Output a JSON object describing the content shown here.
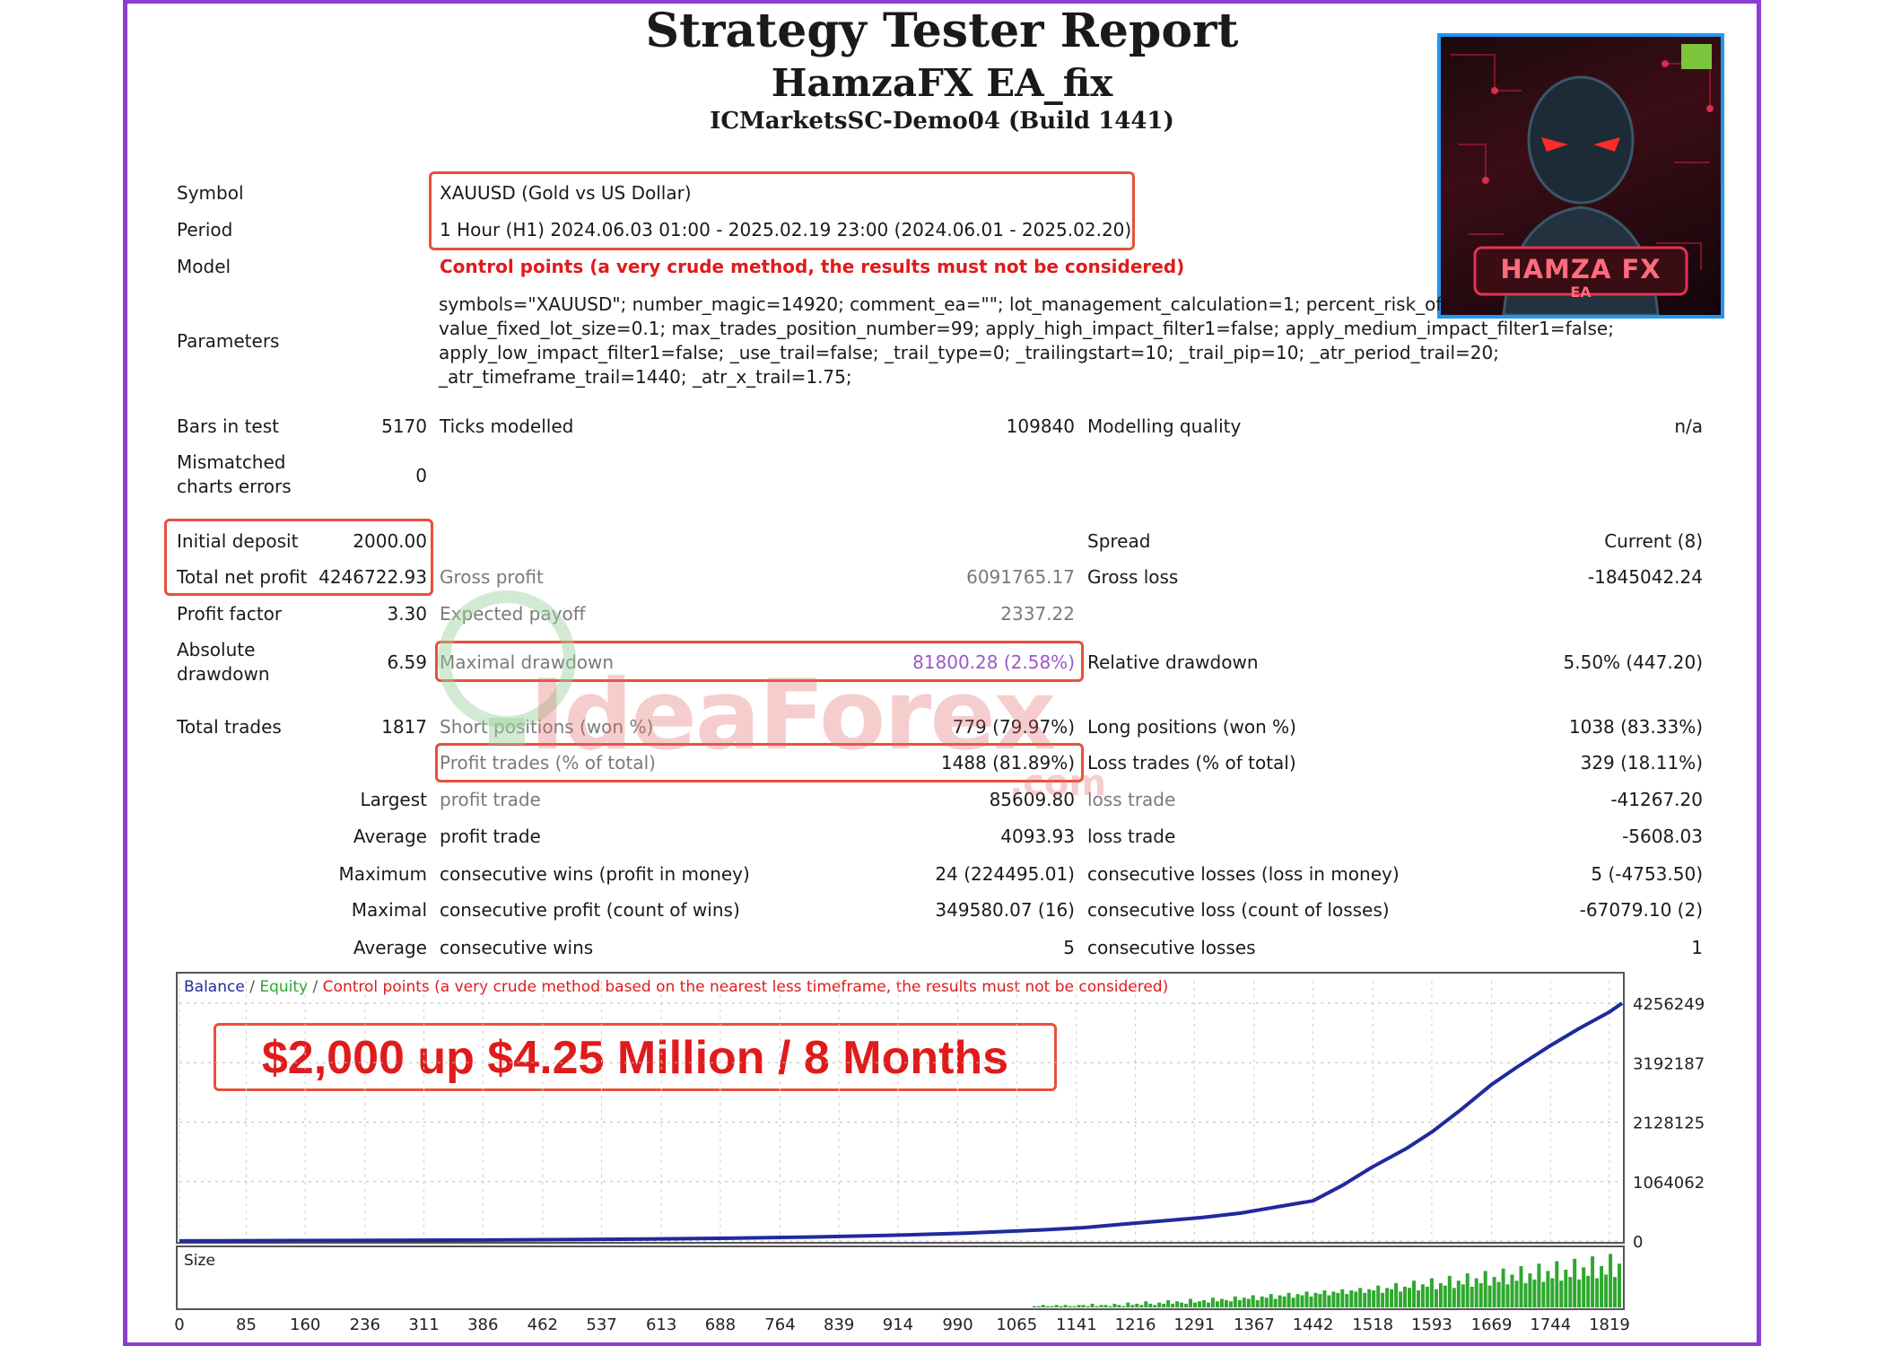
{
  "header": {
    "title": "Strategy Tester Report",
    "ea_name": "HamzaFX EA_fix",
    "server": "ICMarketsSC-Demo04 (Build 1441)"
  },
  "logo": {
    "text_main": "HAMZA FX",
    "text_sub": "EA",
    "icon": "robot-avatar-icon"
  },
  "settings": {
    "symbol_label": "Symbol",
    "symbol_value": "XAUUSD (Gold vs US Dollar)",
    "period_label": "Period",
    "period_value": "1 Hour (H1) 2024.06.03 01:00 - 2025.02.19 23:00 (2024.06.01 - 2025.02.20)",
    "model_label": "Model",
    "model_value": "Control points (a very crude method, the results must not be considered)",
    "parameters_label": "Parameters",
    "parameters_lines": [
      "symbols=\"XAUUSD\"; number_magic=14920; comment_ea=\"\"; lot_management_calculation=1; percent_risk_of_",
      "value_fixed_lot_size=0.1; max_trades_position_number=99; apply_high_impact_filter1=false; apply_medium_impact_filter1=false;",
      "apply_low_impact_filter1=false; _use_trail=false; _trail_type=0; _trailingstart=10; _trail_pip=10; _atr_period_trail=20;",
      "_atr_timeframe_trail=1440; _atr_x_trail=1.75;"
    ]
  },
  "stats": {
    "bars_label": "Bars in test",
    "bars_value": "5170",
    "ticks_label": "Ticks modelled",
    "ticks_value": "109840",
    "quality_label": "Modelling quality",
    "quality_value": "n/a",
    "mismatch_label_1": "Mismatched",
    "mismatch_label_2": "charts errors",
    "mismatch_value": "0",
    "deposit_label": "Initial deposit",
    "deposit_value": "2000.00",
    "spread_label": "Spread",
    "spread_value": "Current (8)",
    "net_label": "Total net profit",
    "net_value": "4246722.93",
    "gross_profit_label": "Gross profit",
    "gross_profit_value": "6091765.17",
    "gross_loss_label": "Gross loss",
    "gross_loss_value": "-1845042.24",
    "pf_label": "Profit factor",
    "pf_value": "3.30",
    "ep_label": "Expected payoff",
    "ep_value": "2337.22",
    "abs_dd_label_1": "Absolute",
    "abs_dd_label_2": "drawdown",
    "abs_dd_value": "6.59",
    "max_dd_label": "Maximal drawdown",
    "max_dd_value": "81800.28 (2.58%)",
    "rel_dd_label": "Relative drawdown",
    "rel_dd_value": "5.50% (447.20)",
    "trades_label": "Total trades",
    "trades_value": "1817",
    "short_label": "Short positions (won %)",
    "short_value": "779 (79.97%)",
    "long_label": "Long positions (won %)",
    "long_value": "1038 (83.33%)",
    "profit_trades_label": "Profit trades (% of total)",
    "profit_trades_value": "1488 (81.89%)",
    "loss_trades_label": "Loss trades (% of total)",
    "loss_trades_value": "329 (18.11%)",
    "largest_label": "Largest",
    "largest_profit_label": "profit trade",
    "largest_profit_value": "85609.80",
    "largest_loss_label": "loss trade",
    "largest_loss_value": "-41267.20",
    "average_label": "Average",
    "avg_profit_label": "profit trade",
    "avg_profit_value": "4093.93",
    "avg_loss_label": "loss trade",
    "avg_loss_value": "-5608.03",
    "maximum_label": "Maximum",
    "max_wins_label": "consecutive wins (profit in money)",
    "max_wins_value": "24 (224495.01)",
    "max_losses_label": "consecutive losses (loss in money)",
    "max_losses_value": "5 (-4753.50)",
    "maximal_label": "Maximal",
    "maximal_profit_label": "consecutive profit (count of wins)",
    "maximal_profit_value": "349580.07 (16)",
    "maximal_loss_label": "consecutive loss (count of losses)",
    "maximal_loss_value": "-67079.10 (2)",
    "average2_label": "Average",
    "avg_wins_label": "consecutive wins",
    "avg_wins_value": "5",
    "avg_losses_label": "consecutive losses",
    "avg_losses_value": "1"
  },
  "watermark": {
    "text": "IdeaForex",
    "sub": ".com"
  },
  "chart_legend": {
    "balance": "Balance",
    "sep1": " / ",
    "equity": "Equity",
    "sep2": " / ",
    "note": "Control points (a very crude method based on the nearest less timeframe, the results must not be considered)"
  },
  "banner": "$2,000 up $4.25 Million / 8 Months",
  "size_label": "Size",
  "colors": {
    "balance": "#1f2a9e",
    "equity": "#2ea82e",
    "highlight": "#e8503b",
    "frame": "#8a3fd1"
  },
  "chart_data": {
    "type": "line",
    "title": "",
    "series": [
      {
        "name": "Balance",
        "x": [
          0,
          100,
          200,
          300,
          400,
          500,
          600,
          700,
          800,
          900,
          1000,
          1050,
          1100,
          1150,
          1200,
          1250,
          1300,
          1350,
          1400,
          1442,
          1480,
          1518,
          1560,
          1593,
          1630,
          1669,
          1700,
          1744,
          1780,
          1819,
          1835
        ],
        "y": [
          2000,
          6000,
          10000,
          14000,
          18000,
          25000,
          35000,
          50000,
          70000,
          100000,
          140000,
          170000,
          200000,
          240000,
          300000,
          360000,
          420000,
          500000,
          620000,
          720000,
          1000000,
          1330000,
          1650000,
          1950000,
          2350000,
          2800000,
          3100000,
          3500000,
          3800000,
          4100000,
          4256249
        ]
      }
    ],
    "y_ticks": [
      "4256249",
      "3192187",
      "2128125",
      "1064062",
      "0"
    ],
    "y_tick_values": [
      4256249,
      3192187,
      2128125,
      1064062,
      0
    ],
    "x_ticks": [
      "0",
      "85",
      "160",
      "236",
      "311",
      "386",
      "462",
      "537",
      "613",
      "688",
      "764",
      "839",
      "914",
      "990",
      "1065",
      "1141",
      "1216",
      "1291",
      "1367",
      "1442",
      "1518",
      "1593",
      "1669",
      "1744",
      "1819"
    ],
    "ylim": [
      0,
      4256249
    ],
    "xlim": [
      0,
      1835
    ],
    "size_series": {
      "name": "Size",
      "start": 1085,
      "values": [
        1,
        1,
        2,
        1,
        1,
        2,
        1,
        2,
        1,
        1,
        2,
        2,
        1,
        3,
        1,
        2,
        2,
        1,
        3,
        2,
        1,
        4,
        2,
        3,
        2,
        5,
        3,
        2,
        4,
        3,
        6,
        3,
        5,
        4,
        3,
        7,
        4,
        5,
        6,
        4,
        8,
        5,
        7,
        6,
        5,
        9,
        6,
        8,
        7,
        10,
        6,
        9,
        8,
        11,
        7,
        10,
        9,
        12,
        8,
        11,
        10,
        13,
        9,
        12,
        11,
        14,
        10,
        13,
        12,
        15,
        11,
        14,
        13,
        16,
        12,
        15,
        14,
        18,
        12,
        16,
        15,
        20,
        13,
        17,
        16,
        22,
        14,
        19,
        17,
        24,
        15,
        20,
        18,
        26,
        16,
        22,
        19,
        28,
        17,
        24,
        20,
        30,
        18,
        25,
        21,
        32,
        19,
        27,
        22,
        34,
        20,
        28,
        23,
        36,
        21,
        30,
        24,
        38,
        22,
        31,
        25,
        40,
        23,
        33,
        26,
        42,
        24,
        34,
        27,
        44,
        25,
        36
      ]
    },
    "size_ylim": [
      0,
      48
    ],
    "grid": true
  }
}
